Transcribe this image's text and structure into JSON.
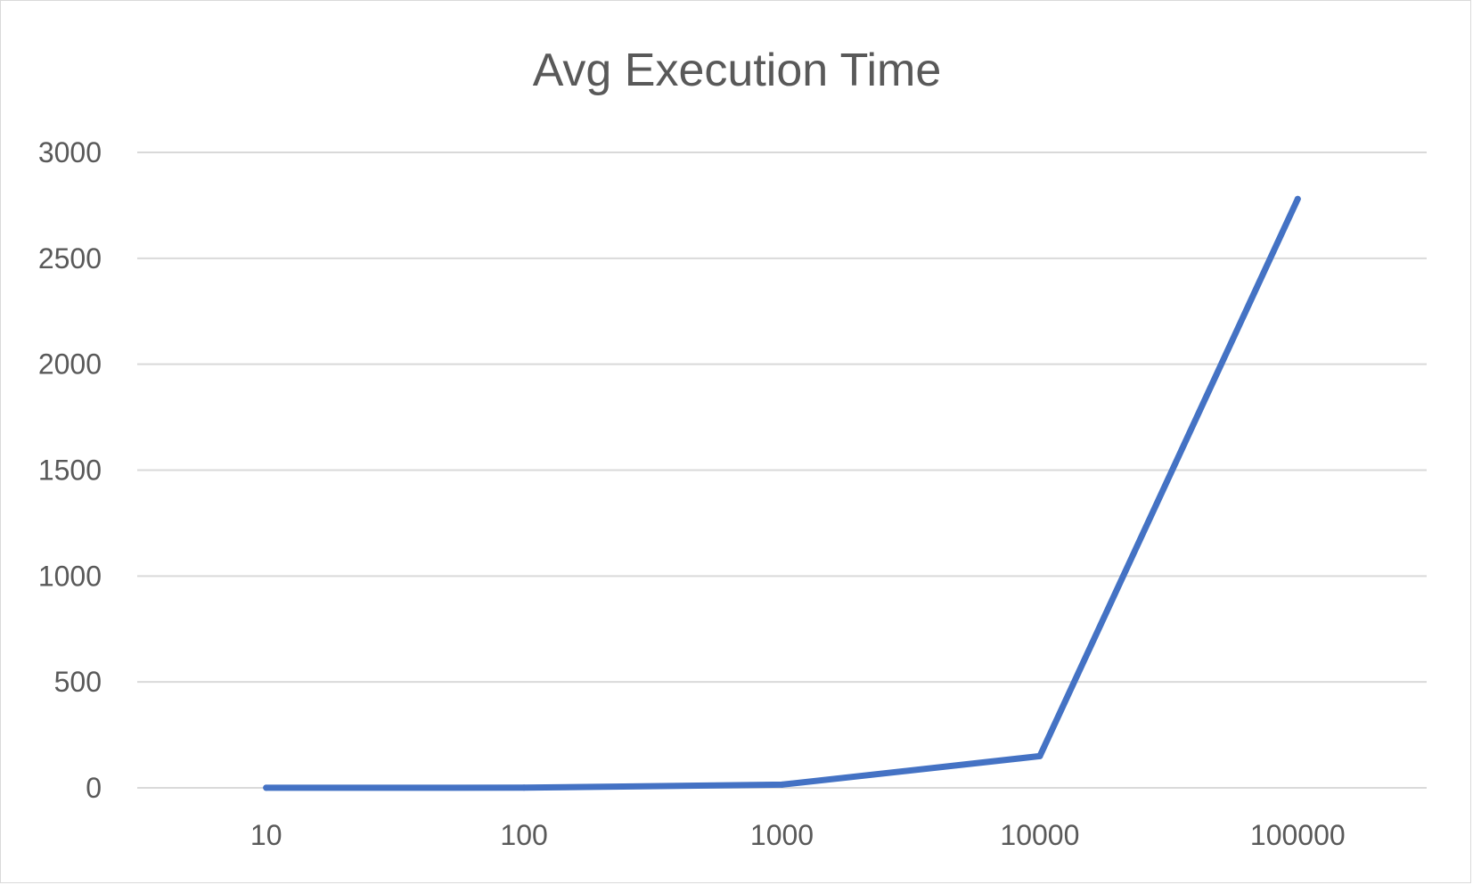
{
  "chart_data": {
    "type": "line",
    "title": "Avg Execution Time",
    "xlabel": "",
    "ylabel": "",
    "categories": [
      "10",
      "100",
      "1000",
      "10000",
      "100000"
    ],
    "series": [
      {
        "values": [
          0.5,
          1,
          15,
          150,
          2780
        ],
        "color": "#4472C4"
      }
    ],
    "ylim": [
      0,
      3000
    ],
    "yticks": [
      0,
      500,
      1000,
      1500,
      2000,
      2500,
      3000
    ],
    "grid": true,
    "legend": "none"
  }
}
